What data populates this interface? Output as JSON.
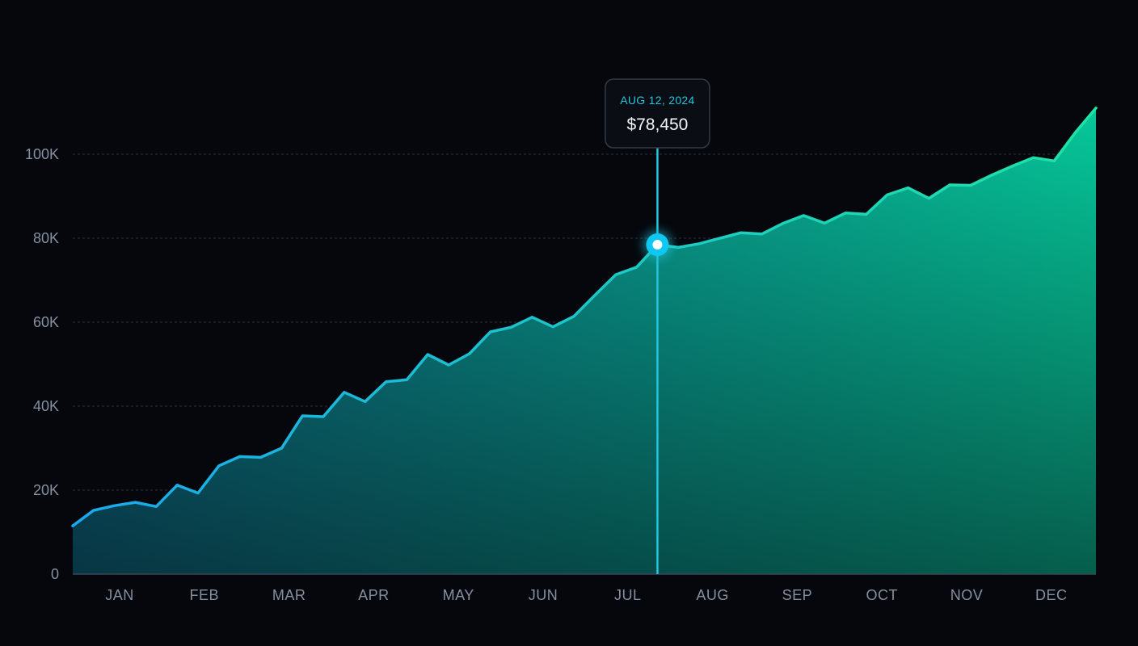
{
  "chart_data": {
    "type": "area",
    "ylim": [
      0,
      110000
    ],
    "y_ticks": [
      0,
      20000,
      40000,
      60000,
      80000,
      100000
    ],
    "y_tick_labels": [
      "0",
      "20K",
      "40K",
      "60K",
      "80K",
      "100K"
    ],
    "x_tick_labels": [
      "JAN",
      "FEB",
      "MAR",
      "APR",
      "MAY",
      "JUN",
      "JUL",
      "AUG",
      "SEP",
      "OCT",
      "NOV",
      "DEC"
    ],
    "grid": "horizontal dashed",
    "series": [
      {
        "values": [
          11500,
          15200,
          16300,
          17100,
          16100,
          21200,
          19300,
          25800,
          28000,
          27800,
          30000,
          37700,
          37500,
          43300,
          41100,
          45800,
          46300,
          52300,
          49800,
          52500,
          57700,
          58800,
          61200,
          58900,
          61400,
          66400,
          71300,
          73100,
          78450,
          77800,
          78700,
          80000,
          81300,
          81000,
          83500,
          85400,
          83600,
          86000,
          85700,
          90300,
          92000,
          89500,
          92700,
          92600,
          95000,
          97200,
          99200,
          98400,
          105100,
          111000
        ]
      }
    ],
    "colors": {
      "line_start": "#1ba8ec",
      "line_end": "#1fe3a6",
      "fill_top_start": "#0b6e88",
      "fill_top_end": "#06c89a",
      "fill_bottom": "#072c42",
      "highlight": "#22c4e0"
    },
    "highlight": {
      "index": 28,
      "date_label": "AUG 12, 2024",
      "value_label": "$78,450"
    }
  }
}
